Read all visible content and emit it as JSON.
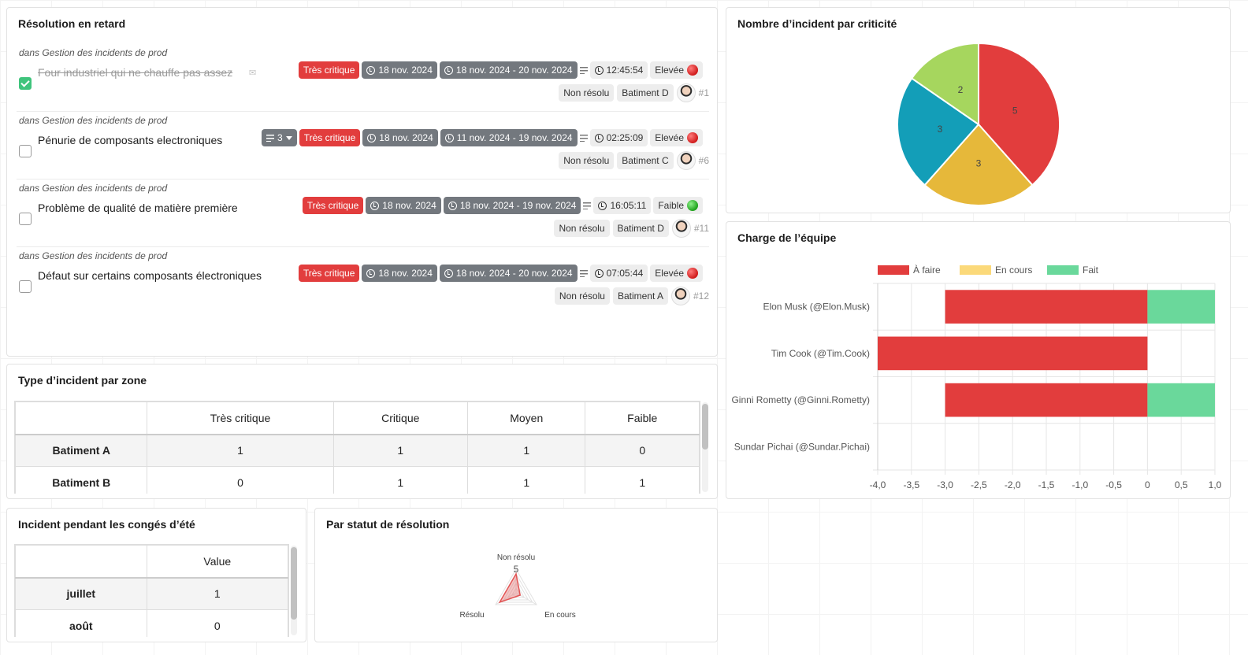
{
  "late_resolution": {
    "title": "Résolution en retard",
    "items": [
      {
        "context": "dans Gestion des incidents de prod",
        "title": "Four industriel qui ne chauffe pas assez",
        "done": true,
        "criticality": "Très critique",
        "date": "18 nov. 2024",
        "range": "18 nov. 2024 - 20 nov. 2024",
        "time": "12:45:54",
        "priority": "Elevée",
        "priority_color": "red",
        "status": "Non résolu",
        "location": "Batiment D",
        "number": "#1"
      },
      {
        "context": "dans Gestion des incidents de prod",
        "title": "Pénurie de composants electroniques",
        "done": false,
        "subtasks": "3",
        "criticality": "Très critique",
        "date": "18 nov. 2024",
        "range": "11 nov. 2024 - 19 nov. 2024",
        "time": "02:25:09",
        "priority": "Elevée",
        "priority_color": "red",
        "status": "Non résolu",
        "location": "Batiment C",
        "number": "#6"
      },
      {
        "context": "dans Gestion des incidents de prod",
        "title": "Problème de qualité de matière première",
        "done": false,
        "criticality": "Très critique",
        "date": "18 nov. 2024",
        "range": "18 nov. 2024 - 19 nov. 2024",
        "time": "16:05:11",
        "priority": "Faible",
        "priority_color": "green",
        "status": "Non résolu",
        "location": "Batiment D",
        "number": "#11"
      },
      {
        "context": "dans Gestion des incidents de prod",
        "title": "Défaut sur certains composants électroniques",
        "done": false,
        "criticality": "Très critique",
        "date": "18 nov. 2024",
        "range": "18 nov. 2024 - 20 nov. 2024",
        "time": "07:05:44",
        "priority": "Elevée",
        "priority_color": "red",
        "status": "Non résolu",
        "location": "Batiment A",
        "number": "#12"
      }
    ]
  },
  "zone_table": {
    "title": "Type d’incident par zone",
    "columns": [
      "",
      "Très critique",
      "Critique",
      "Moyen",
      "Faible"
    ],
    "rows": [
      {
        "label": "Batiment A",
        "values": [
          "1",
          "1",
          "1",
          "0"
        ]
      },
      {
        "label": "Batiment B",
        "values": [
          "0",
          "1",
          "1",
          "1"
        ]
      }
    ]
  },
  "summer_table": {
    "title": "Incident pendant les congés d’été",
    "columns": [
      "",
      "Value"
    ],
    "rows": [
      {
        "label": "juillet",
        "value": "1"
      },
      {
        "label": "août",
        "value": "0"
      }
    ]
  },
  "charts": {
    "pie_title": "Nombre d’incident par criticité",
    "workload_title": "Charge de l’équipe",
    "radar_title": "Par statut de résolution"
  },
  "chart_data": [
    {
      "type": "pie",
      "title": "Nombre d’incident par criticité",
      "slices": [
        {
          "label": "5",
          "value": 5,
          "color": "#e23d3d"
        },
        {
          "label": "3",
          "value": 3,
          "color": "#e6b83a"
        },
        {
          "label": "3",
          "value": 3,
          "color": "#139eb8"
        },
        {
          "label": "2",
          "value": 2,
          "color": "#a6d65e"
        }
      ]
    },
    {
      "type": "bar",
      "orientation": "horizontal",
      "stacked": true,
      "title": "Charge de l’équipe",
      "categories": [
        "Elon Musk (@Elon.Musk)",
        "Tim Cook (@Tim.Cook)",
        "Ginni Rometty (@Ginni.Rometty)",
        "Sundar Pichai (@Sundar.Pichai)"
      ],
      "series": [
        {
          "name": "À faire",
          "color": "#e23d3d",
          "values": [
            -3,
            -4,
            -3,
            0
          ]
        },
        {
          "name": "En cours",
          "color": "#fbd97a",
          "values": [
            0,
            0,
            0,
            0
          ]
        },
        {
          "name": "Fait",
          "color": "#6ad89b",
          "values": [
            1,
            0,
            1,
            0
          ]
        }
      ],
      "xlim": [
        -4,
        1
      ],
      "xticks": [
        "-4,0",
        "-3,5",
        "-3,0",
        "-2,5",
        "-2,0",
        "-1,5",
        "-1,0",
        "-0,5",
        "0",
        "0,5",
        "1,0"
      ],
      "legend": "top"
    },
    {
      "type": "radar",
      "title": "Par statut de résolution",
      "axes": [
        "Non résolu",
        "En cours",
        "Résolu"
      ],
      "max_label": "5",
      "values": [
        4,
        1,
        4
      ],
      "color": "#e25555"
    }
  ]
}
